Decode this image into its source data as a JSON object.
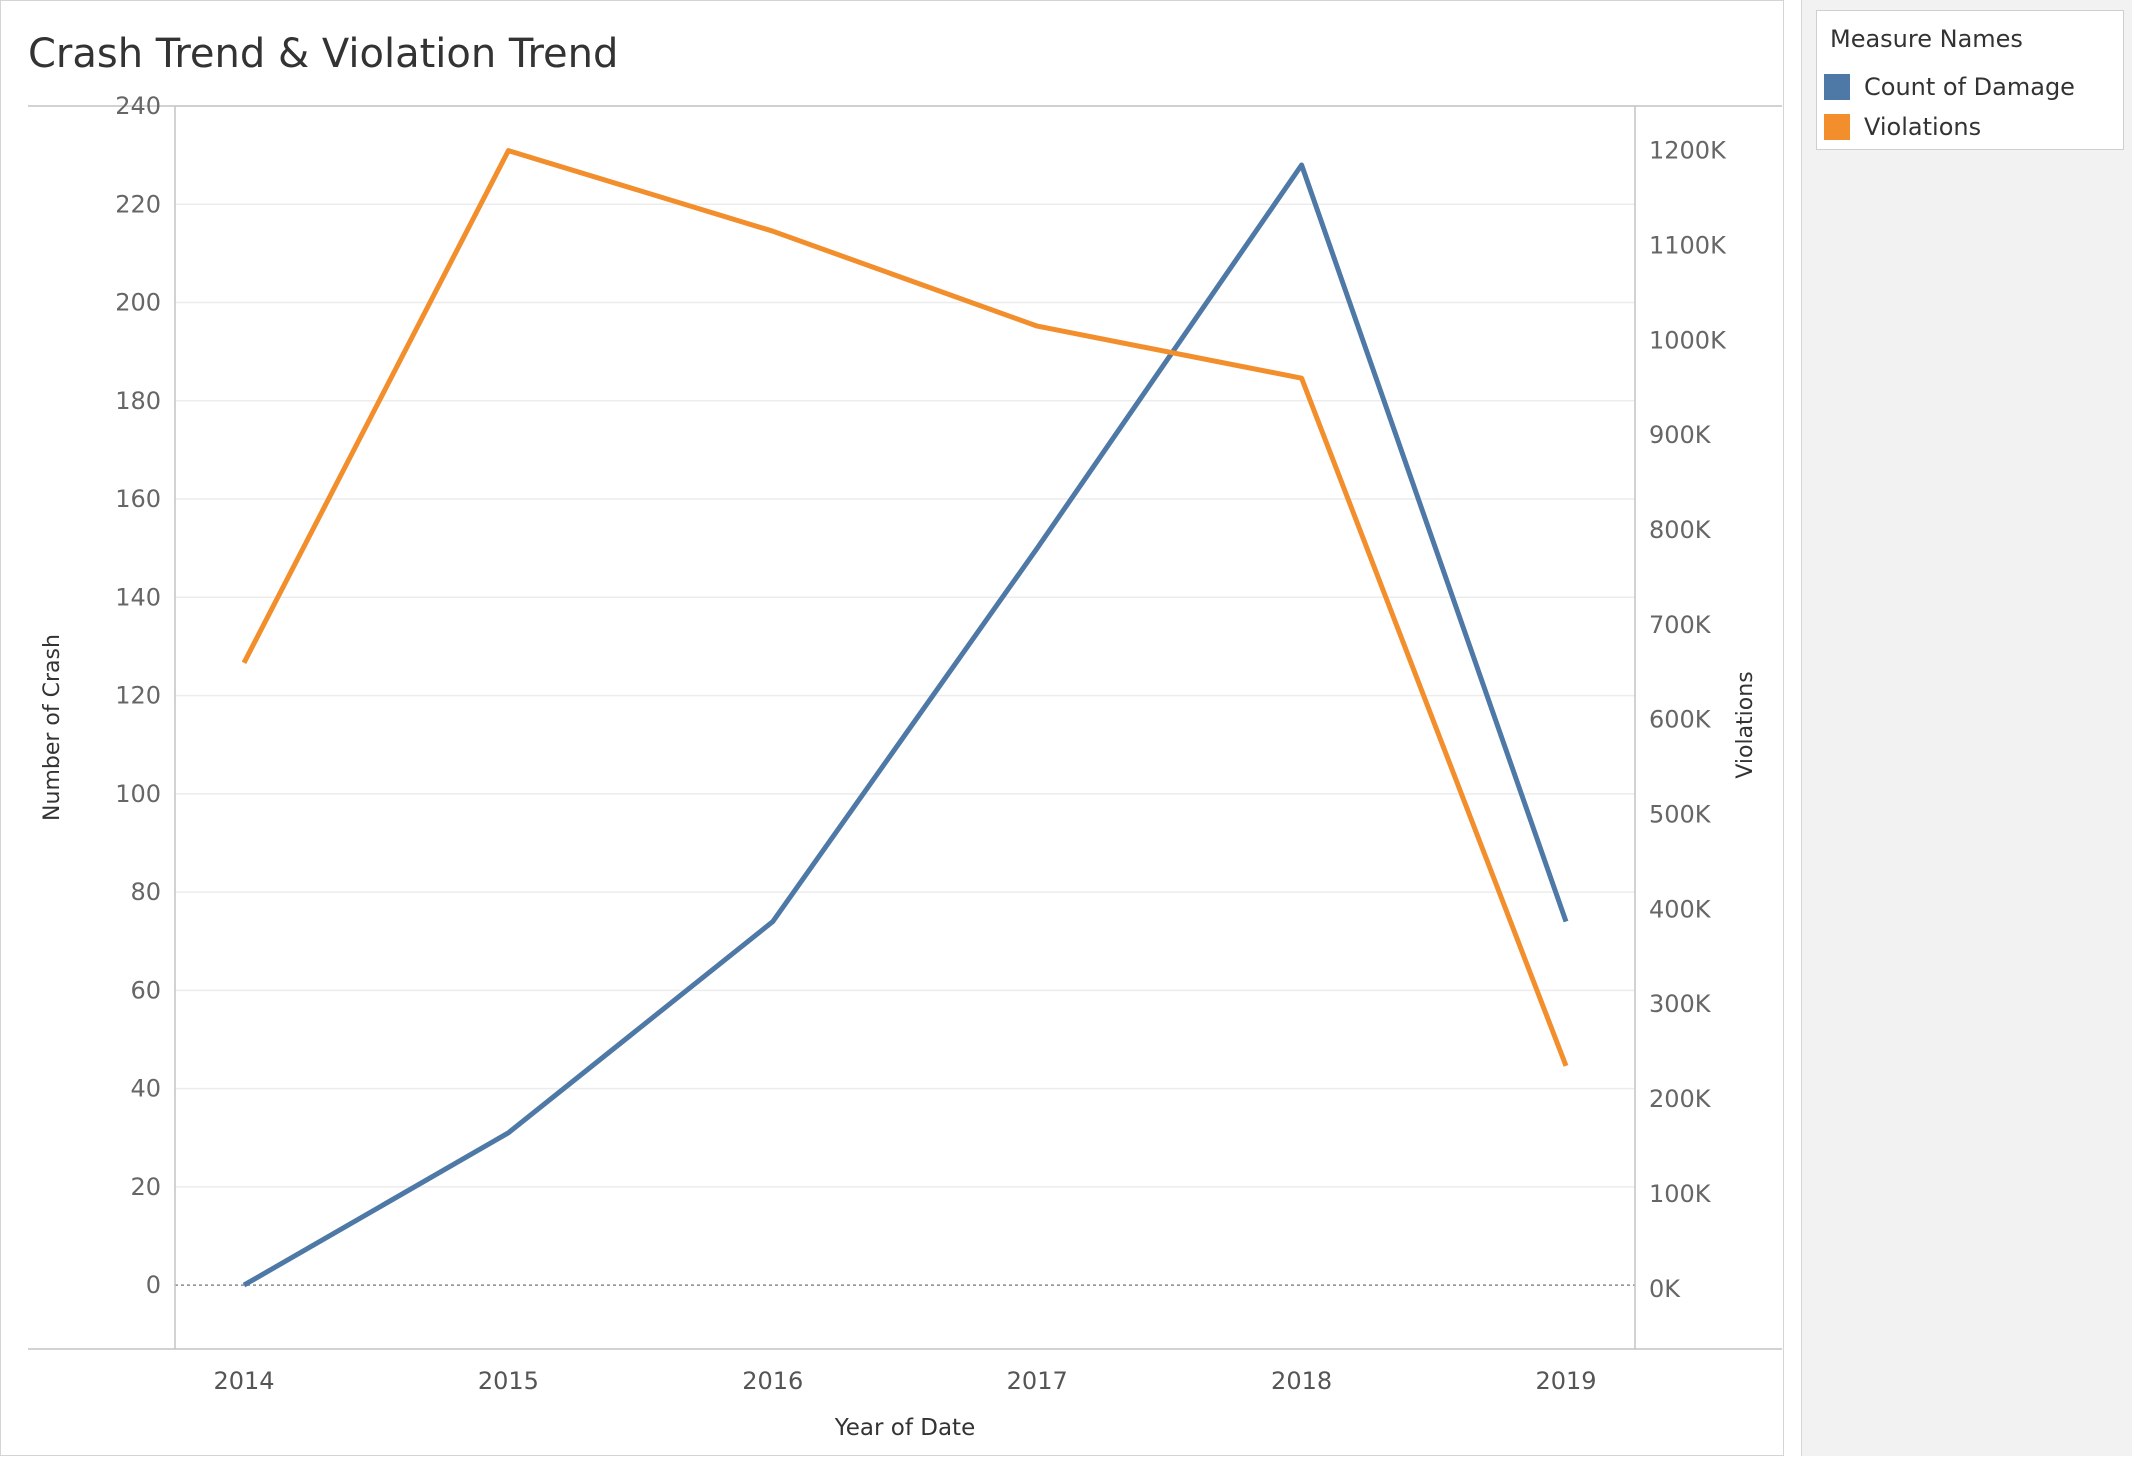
{
  "chart_data": {
    "type": "line",
    "title": "Crash Trend & Violation Trend",
    "xlabel": "Year of Date",
    "ylabel": "Number of Crash",
    "y2label": "Violations",
    "categories": [
      "2014",
      "2015",
      "2016",
      "2017",
      "2018",
      "2019"
    ],
    "ylim": [
      -13,
      240
    ],
    "y2lim": [
      -63500,
      1247000
    ],
    "yticks": [
      0,
      20,
      40,
      60,
      80,
      100,
      120,
      140,
      160,
      180,
      200,
      220,
      240
    ],
    "y2ticks": [
      0,
      100000,
      200000,
      300000,
      400000,
      500000,
      600000,
      700000,
      800000,
      900000,
      1000000,
      1100000,
      1200000
    ],
    "y2tick_labels": [
      "0K",
      "100K",
      "200K",
      "300K",
      "400K",
      "500K",
      "600K",
      "700K",
      "800K",
      "900K",
      "1000K",
      "1100K",
      "1200K"
    ],
    "grid": true,
    "series": [
      {
        "name": "Count of Damage",
        "axis": "left",
        "color": "#4e79a7",
        "values": [
          0,
          31,
          74,
          150,
          228,
          74
        ]
      },
      {
        "name": "Violations",
        "axis": "right",
        "color": "#f28e2b",
        "values": [
          660000,
          1200000,
          1115000,
          1015000,
          960000,
          235000
        ]
      }
    ]
  },
  "legend": {
    "title": "Measure Names",
    "items": [
      {
        "label": "Count of Damage",
        "color": "#4e79a7"
      },
      {
        "label": "Violations",
        "color": "#f28e2b"
      }
    ]
  }
}
